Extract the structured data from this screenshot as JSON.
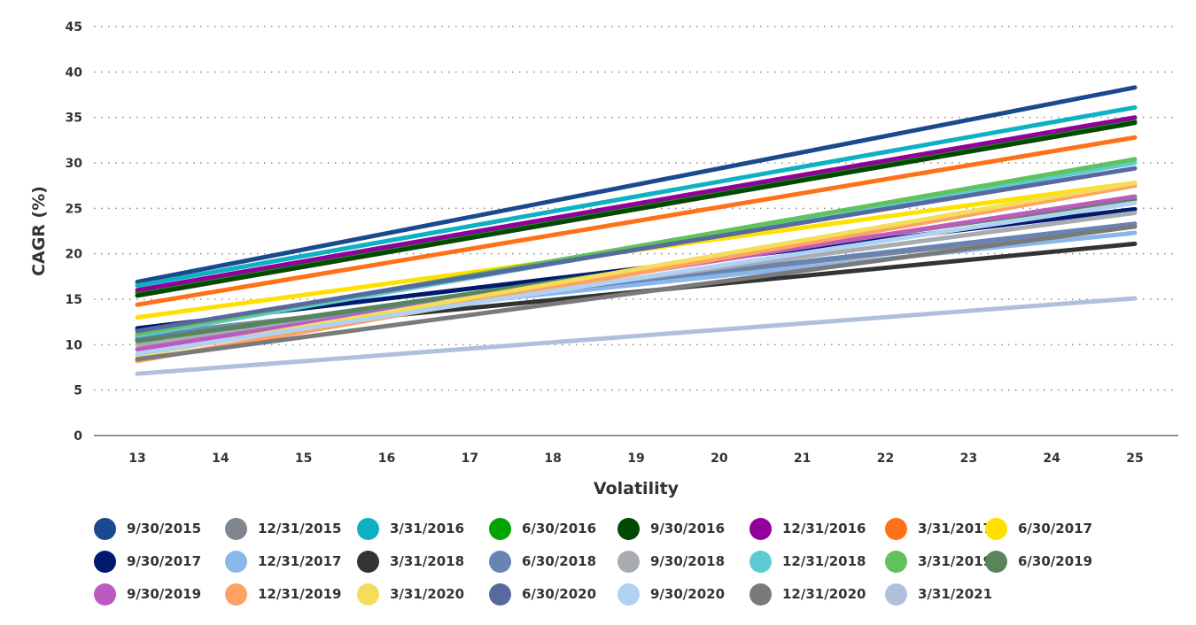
{
  "chart_data": {
    "type": "line",
    "title": "",
    "xlabel": "Volatility",
    "ylabel": "CAGR (%)",
    "xlim": [
      13,
      25
    ],
    "ylim": [
      0,
      45
    ],
    "x_ticks": [
      13,
      14,
      15,
      16,
      17,
      18,
      19,
      20,
      21,
      22,
      23,
      24,
      25
    ],
    "y_ticks": [
      0,
      5,
      10,
      15,
      20,
      25,
      30,
      35,
      40,
      45
    ],
    "grid": "horizontal-dotted",
    "legend_position": "bottom",
    "x": [
      13,
      25
    ],
    "series": [
      {
        "name": "9/30/2015",
        "color": "#1a4a8e",
        "values": [
          16.9,
          38.3
        ]
      },
      {
        "name": "12/31/2015",
        "color": "#7f868f",
        "values": [
          11.0,
          23.0
        ]
      },
      {
        "name": "3/31/2016",
        "color": "#0db1c1",
        "values": [
          16.5,
          36.1
        ]
      },
      {
        "name": "6/30/2016",
        "color": "#02a402",
        "values": [
          15.7,
          34.6
        ]
      },
      {
        "name": "9/30/2016",
        "color": "#024702",
        "values": [
          15.4,
          34.4
        ]
      },
      {
        "name": "12/31/2016",
        "color": "#92009b",
        "values": [
          16.0,
          35.0
        ]
      },
      {
        "name": "3/31/2017",
        "color": "#ff7119",
        "values": [
          14.4,
          32.8
        ]
      },
      {
        "name": "6/30/2017",
        "color": "#ffe000",
        "values": [
          13.0,
          27.8
        ]
      },
      {
        "name": "9/30/2017",
        "color": "#001b6e",
        "values": [
          11.8,
          24.9
        ]
      },
      {
        "name": "12/31/2017",
        "color": "#8ab7ea",
        "values": [
          10.9,
          22.3
        ]
      },
      {
        "name": "3/31/2018",
        "color": "#333333",
        "values": [
          10.5,
          21.1
        ]
      },
      {
        "name": "6/30/2018",
        "color": "#6884b4",
        "values": [
          10.8,
          23.3
        ]
      },
      {
        "name": "9/30/2018",
        "color": "#a8acb0",
        "values": [
          10.0,
          24.5
        ]
      },
      {
        "name": "12/31/2018",
        "color": "#5dcad4",
        "values": [
          11.0,
          30.0
        ]
      },
      {
        "name": "3/31/2019",
        "color": "#60c25b",
        "values": [
          11.2,
          30.4
        ]
      },
      {
        "name": "6/30/2019",
        "color": "#58855c",
        "values": [
          10.4,
          26.0
        ]
      },
      {
        "name": "9/30/2019",
        "color": "#bc5bbf",
        "values": [
          9.5,
          26.3
        ]
      },
      {
        "name": "12/31/2019",
        "color": "#ffa164",
        "values": [
          8.2,
          27.5
        ]
      },
      {
        "name": "3/31/2020",
        "color": "#f3dd5a",
        "values": [
          8.8,
          27.8
        ]
      },
      {
        "name": "6/30/2020",
        "color": "#58699f",
        "values": [
          11.5,
          29.4
        ]
      },
      {
        "name": "9/30/2020",
        "color": "#b1d1f2",
        "values": [
          9.0,
          25.6
        ]
      },
      {
        "name": "12/31/2020",
        "color": "#7a7a7a",
        "values": [
          8.4,
          23.0
        ]
      },
      {
        "name": "3/31/2021",
        "color": "#b0c0dc",
        "values": [
          6.8,
          15.1
        ]
      }
    ]
  }
}
